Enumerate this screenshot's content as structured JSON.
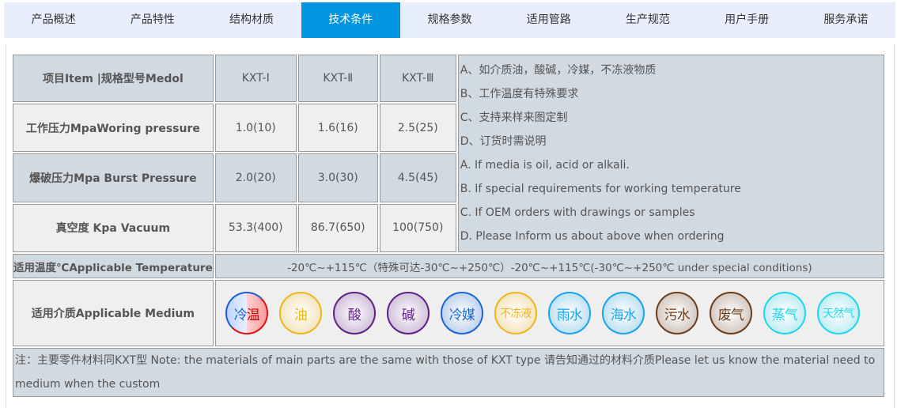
{
  "tabs": [
    {
      "label": "产品概述",
      "active": false
    },
    {
      "label": "产品特性",
      "active": false
    },
    {
      "label": "结构材质",
      "active": false
    },
    {
      "label": "技术条件",
      "active": true
    },
    {
      "label": "规格参数",
      "active": false
    },
    {
      "label": "适用管路",
      "active": false
    },
    {
      "label": "生产规范",
      "active": false
    },
    {
      "label": "用户手册",
      "active": false
    },
    {
      "label": "服务承诺",
      "active": false
    }
  ],
  "table": {
    "header": {
      "label": "项目Item |规格型号Medol",
      "cols": [
        "KXT-Ⅰ",
        "KXT-Ⅱ",
        "KXT-Ⅲ"
      ]
    },
    "rows": [
      {
        "label": "工作压力MpaWoring pressure",
        "values": [
          "1.0(10)",
          "1.6(16)",
          "2.5(25)"
        ]
      },
      {
        "label": "爆破压力Mpa Burst Pressure",
        "values": [
          "2.0(20)",
          "3.0(30)",
          "4.5(45)"
        ]
      },
      {
        "label": "真空度 Kpa Vacuum",
        "values": [
          "53.3(400)",
          "86.7(650)",
          "100(750)"
        ]
      }
    ],
    "notes": [
      "A、如介质油，酸碱，冷媒，不冻液物质",
      "B、工作温度有特殊要求",
      "C、支持来样来图定制",
      "D、订货时需说明",
      "A. If media is oil, acid or alkali.",
      "B. If special requirements for working temperature",
      "C. If OEM orders with drawings or samples",
      "D. Please Inform us about above when ordering"
    ],
    "temperature": {
      "label": "适用温度℃Applicable Temperature",
      "value": "-20℃~+115℃（特殊可达-30℃~+250℃）-20℃~+115℃(-30℃~+250℃ under special conditions)"
    },
    "medium": {
      "label": "适用介质Applicable Medium",
      "items": [
        {
          "label": "冷温",
          "color": "#1a5fd6"
        },
        {
          "label": "油",
          "color": "#f0b41c"
        },
        {
          "label": "酸",
          "color": "#5e1f86"
        },
        {
          "label": "碱",
          "color": "#5e1f86"
        },
        {
          "label": "冷媒",
          "color": "#1a66d8"
        },
        {
          "label": "不冻液",
          "color": "#f0b41c"
        },
        {
          "label": "雨水",
          "color": "#18a4f0"
        },
        {
          "label": "海水",
          "color": "#18a4f0"
        },
        {
          "label": "污水",
          "color": "#6a3d1c"
        },
        {
          "label": "废气",
          "color": "#6a3d1c"
        },
        {
          "label": "蒸气",
          "color": "#1ed6ee"
        },
        {
          "label": "天然气",
          "color": "#1ed6ee"
        }
      ]
    },
    "footnote": "注：主要零件材料同KXT型 Note: the materials of main parts are the same with those of KXT type 请告知通过的材料介质Please let us know the material need to medium when the custom"
  }
}
